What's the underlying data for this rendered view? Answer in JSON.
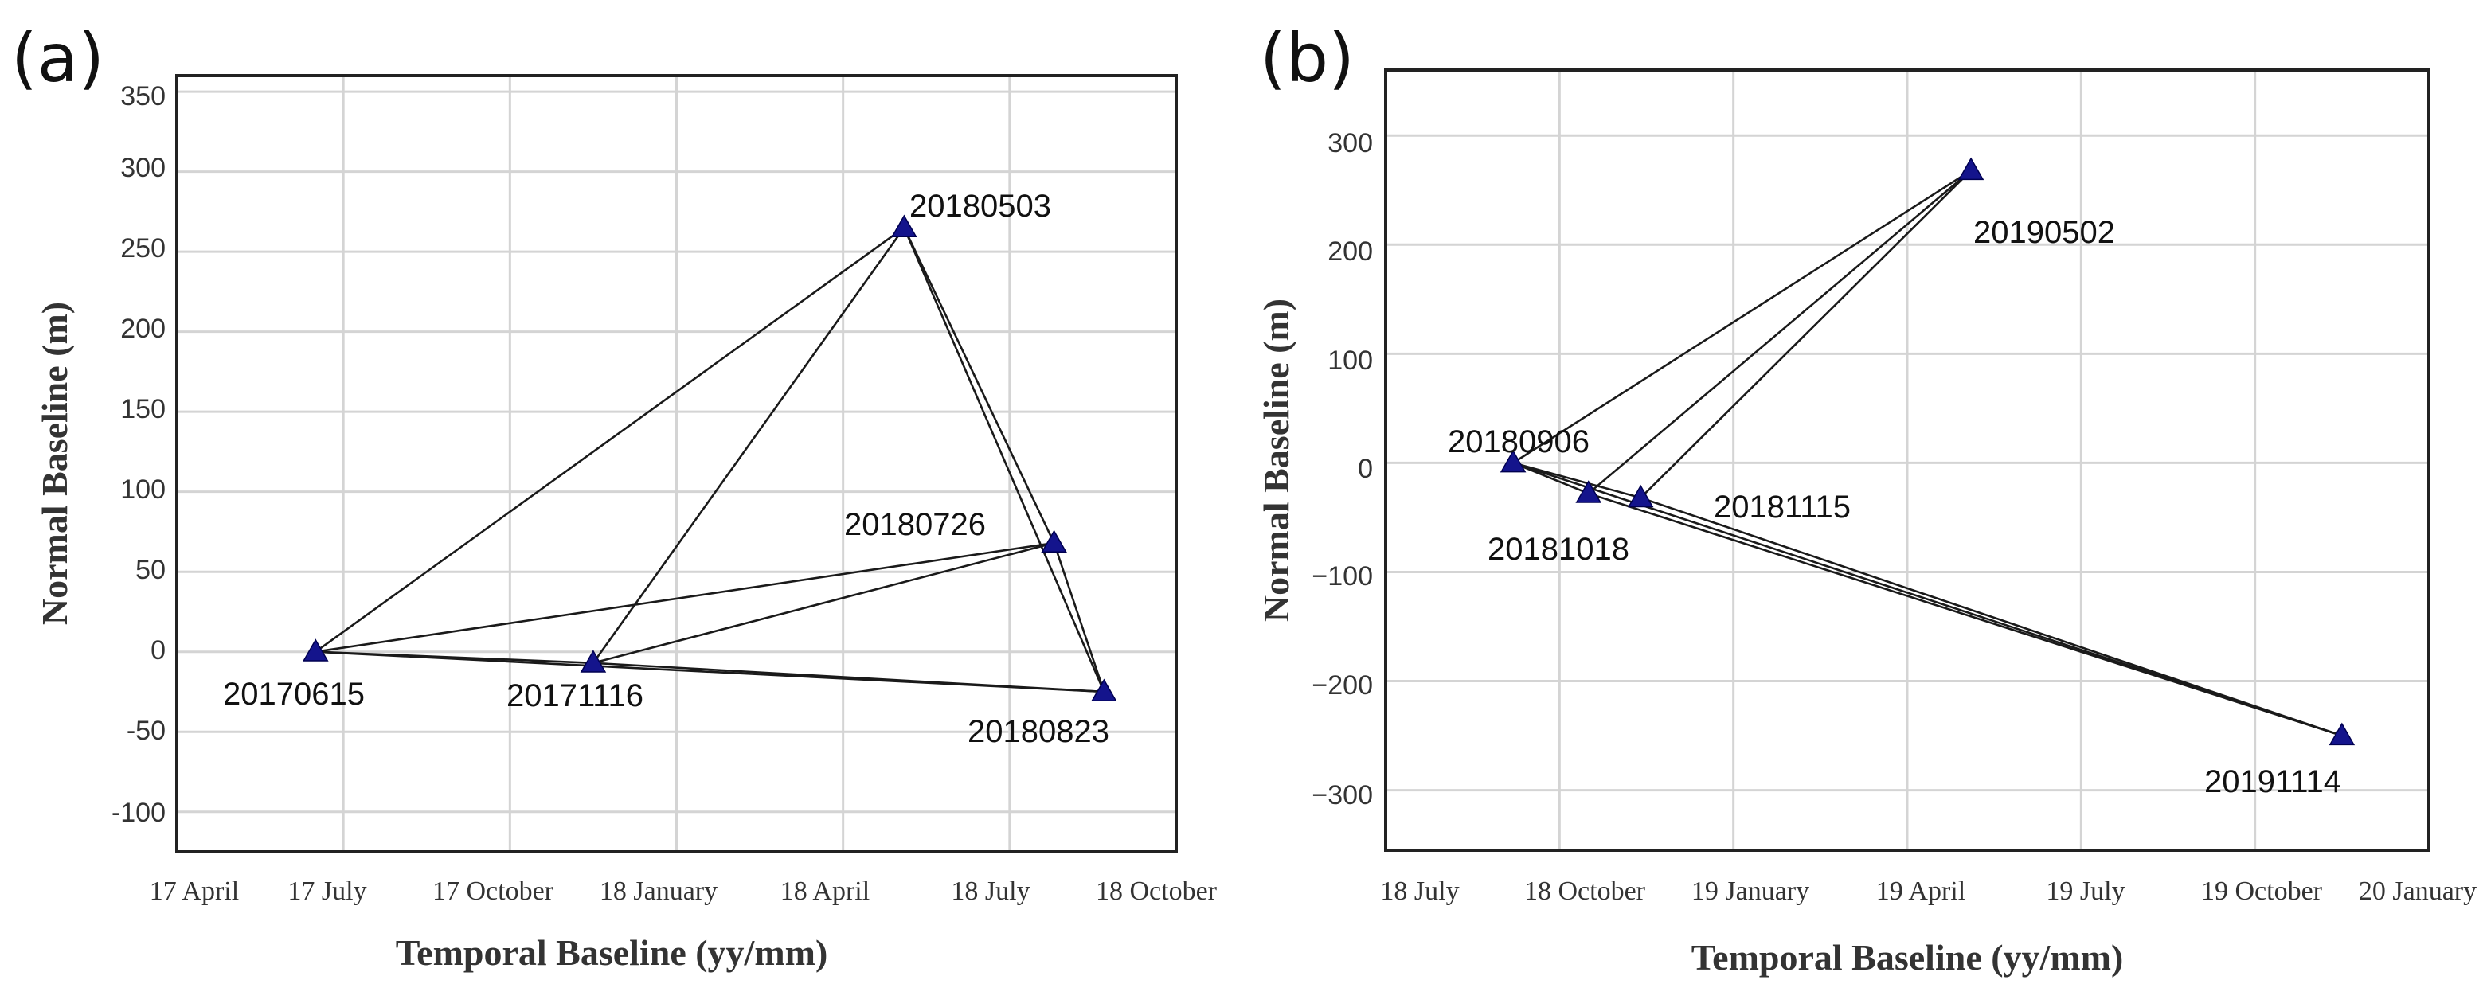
{
  "chart_data": [
    {
      "type": "scatter",
      "panel_label": "(a)",
      "xlabel": "Temporal Baseline (yy/mm)",
      "ylabel": "Normal Baseline (m)",
      "x_unit": "months since 2017-04",
      "xlim": [
        0,
        18
      ],
      "ylim": [
        -125,
        360
      ],
      "xticks": [
        0,
        3,
        6,
        9,
        12,
        15,
        18
      ],
      "xtick_labels": [
        "17 April",
        "17 July",
        "17 October",
        "18 January",
        "18 April",
        "18 July",
        "18 October"
      ],
      "yticks": [
        -100,
        -50,
        0,
        50,
        100,
        150,
        200,
        250,
        300,
        350
      ],
      "ytick_labels": [
        "-100",
        "-50",
        "0",
        "50",
        "100",
        "150",
        "200",
        "250",
        "300",
        "350"
      ],
      "grid": true,
      "points": [
        {
          "label": "20170615",
          "x": 2.5,
          "y": 0
        },
        {
          "label": "20171116",
          "x": 7.5,
          "y": -7
        },
        {
          "label": "20180503",
          "x": 13.1,
          "y": 265
        },
        {
          "label": "20180726",
          "x": 15.8,
          "y": 68
        },
        {
          "label": "20180823",
          "x": 16.7,
          "y": -25
        }
      ],
      "pairs": [
        [
          0,
          1
        ],
        [
          0,
          2
        ],
        [
          0,
          3
        ],
        [
          0,
          4
        ],
        [
          1,
          2
        ],
        [
          1,
          3
        ],
        [
          1,
          4
        ],
        [
          2,
          3
        ],
        [
          2,
          4
        ],
        [
          3,
          4
        ]
      ]
    },
    {
      "type": "scatter",
      "panel_label": "(b)",
      "xlabel": "Temporal Baseline (yy/mm)",
      "ylabel": "Normal Baseline (m)",
      "x_unit": "months since 2018-07",
      "xlim": [
        0,
        18
      ],
      "ylim": [
        -355,
        360
      ],
      "xticks": [
        0,
        3,
        6,
        9,
        12,
        15,
        18
      ],
      "xtick_labels": [
        "18 July",
        "18 October",
        "19 January",
        "19 April",
        "19 July",
        "19 October",
        "20 January"
      ],
      "yticks": [
        -300,
        -200,
        -100,
        0,
        100,
        200,
        300
      ],
      "ytick_labels": [
        "−300",
        "−200",
        "−100",
        "0",
        "100",
        "200",
        "300"
      ],
      "grid": true,
      "points": [
        {
          "label": "20180906",
          "x": 2.2,
          "y": 0
        },
        {
          "label": "20181018",
          "x": 3.5,
          "y": -28
        },
        {
          "label": "20181115",
          "x": 4.4,
          "y": -32
        },
        {
          "label": "20190502",
          "x": 10.1,
          "y": 268
        },
        {
          "label": "20191114",
          "x": 16.5,
          "y": -250
        }
      ],
      "pairs": [
        [
          0,
          1
        ],
        [
          0,
          2
        ],
        [
          0,
          3
        ],
        [
          0,
          4
        ],
        [
          1,
          3
        ],
        [
          1,
          4
        ],
        [
          2,
          3
        ],
        [
          2,
          4
        ]
      ]
    }
  ]
}
